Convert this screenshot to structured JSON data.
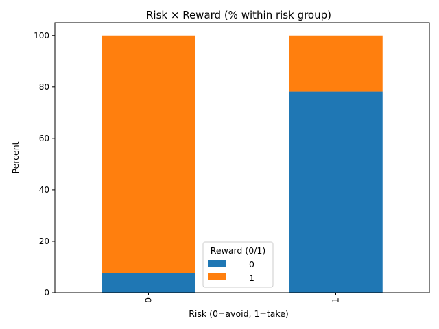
{
  "chart_data": {
    "type": "bar",
    "stacked": true,
    "title": "Risk × Reward (% within risk group)",
    "xlabel": "Risk (0=avoid, 1=take)",
    "ylabel": "Percent",
    "categories": [
      "0",
      "1"
    ],
    "ylim": [
      0,
      105
    ],
    "yticks": [
      "0",
      "20",
      "40",
      "60",
      "80",
      "100"
    ],
    "series": [
      {
        "name": "0",
        "color": "#1f77b4",
        "values": [
          7.5,
          78.2
        ]
      },
      {
        "name": "1",
        "color": "#ff7f0e",
        "values": [
          92.5,
          21.8
        ]
      }
    ],
    "legend": {
      "title": "Reward (0/1)",
      "placement": "lower-center"
    },
    "grid": false
  }
}
